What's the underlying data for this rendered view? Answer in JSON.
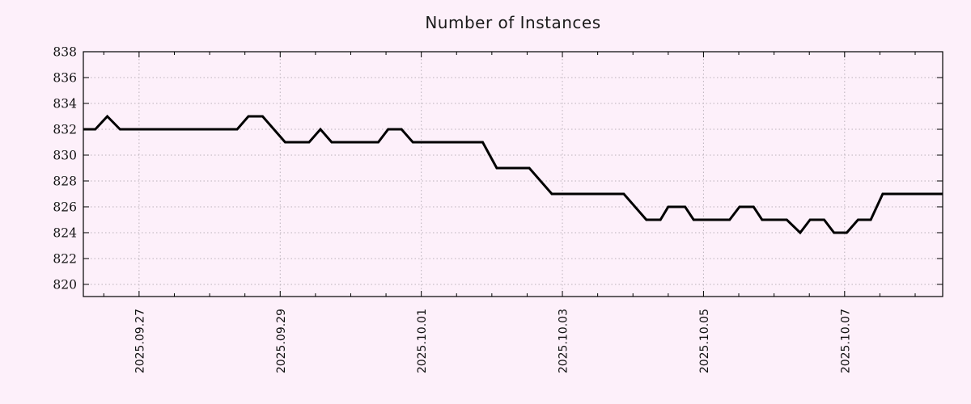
{
  "title": "Number of Instances",
  "chart_data": {
    "type": "line",
    "title": "Number of Instances",
    "xlabel": "",
    "ylabel": "",
    "grid": "dotted",
    "legend": "none",
    "x_axis": {
      "unit": "date",
      "range_days": [
        -0.79,
        11.39
      ],
      "major_tick_interval_days": 2,
      "minor_tick_interval_days": 0.5,
      "ticks": [
        {
          "label": "2025.09.27",
          "d": 0
        },
        {
          "label": "2025.09.29",
          "d": 2
        },
        {
          "label": "2025.10.01",
          "d": 4
        },
        {
          "label": "2025.10.03",
          "d": 6
        },
        {
          "label": "2025.10.05",
          "d": 8
        },
        {
          "label": "2025.10.07",
          "d": 10
        }
      ]
    },
    "y_axis": {
      "range": [
        819.06,
        838
      ],
      "ticks": [
        820,
        822,
        824,
        826,
        828,
        830,
        832,
        834,
        836,
        838
      ]
    },
    "series": [
      {
        "name": "instances",
        "color": "#000000",
        "points": [
          [
            -0.79,
            832
          ],
          [
            -0.62,
            832
          ],
          [
            -0.45,
            833
          ],
          [
            -0.27,
            832
          ],
          [
            1.39,
            832
          ],
          [
            1.55,
            833
          ],
          [
            1.75,
            833
          ],
          [
            2.07,
            831
          ],
          [
            2.41,
            831
          ],
          [
            2.57,
            832
          ],
          [
            2.73,
            831
          ],
          [
            3.39,
            831
          ],
          [
            3.53,
            832
          ],
          [
            3.72,
            832
          ],
          [
            3.88,
            831
          ],
          [
            4.87,
            831
          ],
          [
            5.07,
            829
          ],
          [
            5.53,
            829
          ],
          [
            5.85,
            827
          ],
          [
            6.87,
            827
          ],
          [
            7.19,
            825
          ],
          [
            7.39,
            825
          ],
          [
            7.5,
            826
          ],
          [
            7.74,
            826
          ],
          [
            7.86,
            825
          ],
          [
            8.37,
            825
          ],
          [
            8.51,
            826
          ],
          [
            8.71,
            826
          ],
          [
            8.83,
            825
          ],
          [
            9.18,
            825
          ],
          [
            9.37,
            824
          ],
          [
            9.51,
            825
          ],
          [
            9.71,
            825
          ],
          [
            9.85,
            824
          ],
          [
            10.03,
            824
          ],
          [
            10.19,
            825
          ],
          [
            10.37,
            825
          ],
          [
            10.54,
            827
          ],
          [
            11.39,
            827
          ]
        ]
      }
    ]
  },
  "style": {
    "background": "#fdf0fa",
    "grid_color": "#bab2ba",
    "axis_color": "#000000",
    "line_color": "#000000",
    "text_color": "#111111"
  }
}
